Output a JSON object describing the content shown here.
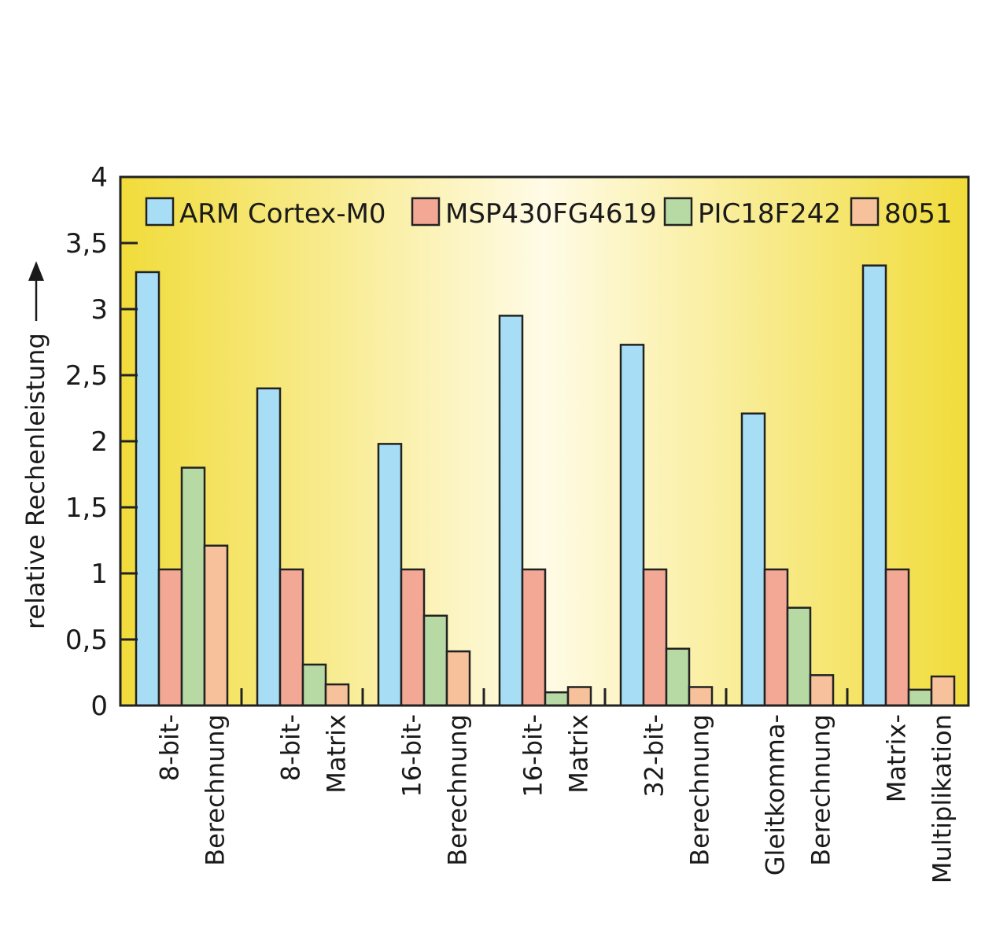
{
  "chart_data": {
    "type": "bar",
    "title": "",
    "xlabel": "",
    "ylabel": "relative Rechenleistung",
    "ylim": [
      0,
      4
    ],
    "y_ticks": [
      "0",
      "0,5",
      "1",
      "1,5",
      "2",
      "2,5",
      "3",
      "3,5",
      "4"
    ],
    "y_tick_values": [
      0,
      0.5,
      1,
      1.5,
      2,
      2.5,
      3,
      3.5,
      4
    ],
    "grid": false,
    "legend_position": "top",
    "categories": [
      [
        "8-bit-",
        "Berechnung"
      ],
      [
        "8-bit-",
        "Matrix"
      ],
      [
        "16-bit-",
        "Berechnung"
      ],
      [
        "16-bit-",
        "Matrix"
      ],
      [
        "32-bit-",
        "Berechnung"
      ],
      [
        "Gleitkomma-",
        "Berechnung"
      ],
      [
        "Matrix-",
        "Multiplikation"
      ]
    ],
    "series": [
      {
        "name": "ARM Cortex-M0",
        "color": "#a8def5",
        "values": [
          3.28,
          2.4,
          1.98,
          2.95,
          2.73,
          2.21,
          3.33
        ]
      },
      {
        "name": "MSP430FG4619",
        "color": "#f3a896",
        "values": [
          1.03,
          1.03,
          1.03,
          1.03,
          1.03,
          1.03,
          1.03
        ]
      },
      {
        "name": "PIC18F242",
        "color": "#b7d9a4",
        "values": [
          1.8,
          0.31,
          0.68,
          0.1,
          0.43,
          0.74,
          0.12
        ]
      },
      {
        "name": "8051",
        "color": "#f7c19c",
        "values": [
          1.21,
          0.16,
          0.41,
          0.14,
          0.14,
          0.23,
          0.22
        ]
      }
    ]
  }
}
